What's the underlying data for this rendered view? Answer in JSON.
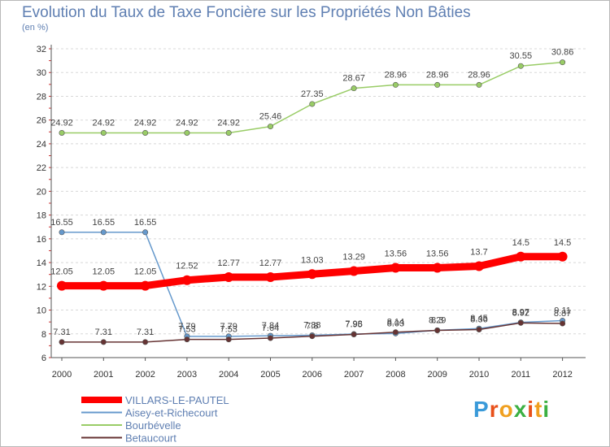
{
  "header": {
    "title": "Evolution du Taux de Taxe Foncière sur les Propriétés Non Bâties",
    "unit": "(en %)"
  },
  "brand": {
    "text": "Proxiti",
    "letter_colors": [
      "#3a9ad9",
      "#e8501a",
      "#f0a020",
      "#3cb043",
      "#e8501a",
      "#f0a020",
      "#3cb043"
    ]
  },
  "chart_data": {
    "type": "line",
    "title": "Evolution du Taux de Taxe Foncière sur les Propriétés Non Bâties",
    "ylabel": "(en %)",
    "xlabel": "",
    "ylim": [
      6,
      32
    ],
    "y_ticks": [
      6,
      8,
      10,
      12,
      14,
      16,
      18,
      20,
      22,
      24,
      26,
      28,
      30,
      32
    ],
    "grid": "horizontal dashed",
    "legend_position": "bottom-left",
    "categories": [
      "2000",
      "2001",
      "2002",
      "2003",
      "2004",
      "2005",
      "2006",
      "2007",
      "2008",
      "2009",
      "2010",
      "2011",
      "2012"
    ],
    "series": [
      {
        "name": "VILLARS-LE-PAUTEL",
        "color": "#ff0000",
        "values": [
          12.05,
          12.05,
          12.05,
          12.52,
          12.77,
          12.77,
          13.03,
          13.29,
          13.56,
          13.56,
          13.7,
          14.5,
          14.5
        ],
        "labels": [
          "12.05",
          "12.05",
          "12.05",
          "12.52",
          "12.77",
          "12.77",
          "13.03",
          "13.29",
          "13.56",
          "13.56",
          "13.7",
          "14.5",
          "14.5"
        ]
      },
      {
        "name": "Aisey-et-Richecourt",
        "color": "#6699cc",
        "values": [
          16.55,
          16.55,
          16.55,
          7.79,
          7.79,
          7.84,
          7.88,
          7.98,
          8.03,
          8.3,
          8.45,
          8.97,
          9.11
        ],
        "labels": [
          "16.55",
          "16.55",
          "16.55",
          "7.79",
          "7.79",
          "7.84",
          "7.88",
          "7.98",
          "8.03",
          "8.3",
          "8.45",
          "8.97",
          "9.11"
        ]
      },
      {
        "name": "Bourbévelle",
        "color": "#99cc66",
        "values": [
          24.92,
          24.92,
          24.92,
          24.92,
          24.92,
          25.46,
          27.35,
          28.67,
          28.96,
          28.96,
          28.96,
          30.55,
          30.86
        ],
        "labels": [
          "24.92",
          "24.92",
          "24.92",
          "24.92",
          "24.92",
          "25.46",
          "27.35",
          "28.67",
          "28.96",
          "28.96",
          "28.96",
          "30.55",
          "30.86"
        ]
      },
      {
        "name": "Betaucourt",
        "color": "#663333",
        "values": [
          7.31,
          7.31,
          7.31,
          7.53,
          7.53,
          7.64,
          7.8,
          7.95,
          8.14,
          8.29,
          8.36,
          8.92,
          8.87
        ],
        "labels": [
          "7.31",
          "7.31",
          "7.31",
          "7.53",
          "7.53",
          "7.64",
          "7.8",
          "7.95",
          "8.14",
          "8.29",
          "8.36",
          "8.92",
          "8.87"
        ]
      }
    ]
  }
}
